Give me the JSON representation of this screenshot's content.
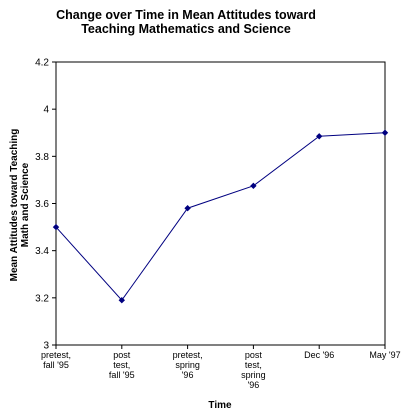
{
  "chart_data": {
    "type": "line",
    "title_lines": [
      "Change over Time in Mean Attitudes toward",
      "Teaching Mathematics and Science"
    ],
    "xlabel": "Time",
    "ylabel_lines": [
      "Mean Attitudes toward Teaching",
      "Math and Science"
    ],
    "ylim": [
      3,
      4.2
    ],
    "yticks": [
      "3",
      "3.2",
      "3.4",
      "3.6",
      "3.8",
      "4",
      "4.2"
    ],
    "ytick_values": [
      3,
      3.2,
      3.4,
      3.6,
      3.8,
      4.0,
      4.2
    ],
    "grid": false,
    "legend": "none",
    "line_color": "#000080",
    "categories": [
      [
        "pretest,",
        "fall '95"
      ],
      [
        "post",
        "test,",
        "fall '95"
      ],
      [
        "pretest,",
        "spring",
        "'96"
      ],
      [
        "post",
        "test,",
        "spring",
        "'96"
      ],
      [
        "Dec '96"
      ],
      [
        "May '97"
      ]
    ],
    "series": [
      {
        "values": [
          3.5,
          3.19,
          3.58,
          3.675,
          3.885,
          3.9
        ]
      }
    ]
  }
}
